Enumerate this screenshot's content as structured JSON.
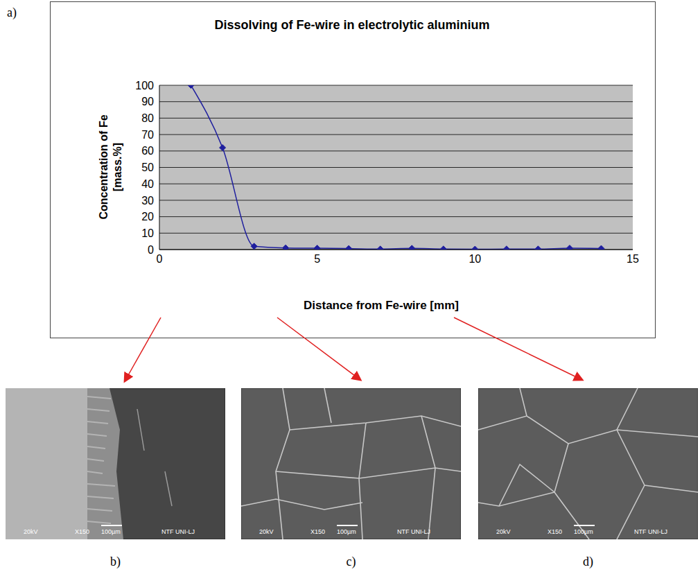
{
  "chart_data": {
    "type": "line",
    "title": "Dissolving of Fe-wire in electrolytic aluminium",
    "xlabel": "Distance from Fe-wire [mm]",
    "ylabel": "Concentration of Fe [mass.%]",
    "x": [
      1,
      2,
      3,
      4,
      5,
      6,
      7,
      8,
      9,
      10,
      11,
      12,
      13,
      14
    ],
    "values": [
      100,
      62,
      2,
      1,
      0.8,
      0.6,
      0.3,
      0.7,
      0.3,
      0.2,
      0.3,
      0.3,
      0.8,
      0.6
    ],
    "color": "#1f1f9e",
    "marker": "diamond",
    "xlim": [
      0,
      15
    ],
    "xticks": [
      0,
      5,
      10,
      15
    ],
    "ylim": [
      0,
      100
    ],
    "yticks": [
      0,
      10,
      20,
      30,
      40,
      50,
      60,
      70,
      80,
      90,
      100
    ],
    "grid": true
  },
  "figure_label": "a)",
  "micrographs": [
    {
      "label": "b)",
      "texts": [
        "20kV",
        "X150",
        "100µm",
        "NTF UNI-LJ"
      ]
    },
    {
      "label": "c)",
      "texts": [
        "20kV",
        "X150",
        "100µm",
        "NTF UNI-LJ"
      ]
    },
    {
      "label": "d)",
      "texts": [
        "20kV",
        "X150",
        "100µm",
        "NTF UNI-LJ"
      ]
    }
  ]
}
